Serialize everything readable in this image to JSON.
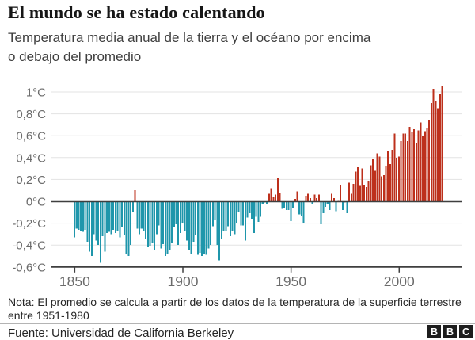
{
  "header": {
    "title": "El mundo se ha estado calentando",
    "subtitle_line1": "Temperatura media anual de la tierra y el océano por encima",
    "subtitle_line2": "o debajo del promedio"
  },
  "chart_data": {
    "type": "bar",
    "title": "El mundo se ha estado calentando",
    "xlabel": "",
    "ylabel": "",
    "ylim": [
      -0.6,
      1.1
    ],
    "baseline": 0,
    "grid": true,
    "legend": "none",
    "colors": {
      "above": "#bd301c",
      "below": "#1f96ab",
      "zero_line": "#3f3f3f",
      "axis": "#3f3f3f",
      "grid": "#e3e3e3",
      "tick_text": "#6b6b6b"
    },
    "y_ticks": [
      {
        "value": 1.0,
        "label": "1°C"
      },
      {
        "value": 0.8,
        "label": "0,8°C"
      },
      {
        "value": 0.6,
        "label": "0,6°C"
      },
      {
        "value": 0.4,
        "label": "0,4°C"
      },
      {
        "value": 0.2,
        "label": "0,2°C"
      },
      {
        "value": 0.0,
        "label": "0°C"
      },
      {
        "value": -0.2,
        "label": "-0,2°C"
      },
      {
        "value": -0.4,
        "label": "-0,4°C"
      },
      {
        "value": -0.6,
        "label": "-0,6°C"
      }
    ],
    "x_ticks": [
      {
        "value": 1850,
        "label": "1850"
      },
      {
        "value": 1900,
        "label": "1900"
      },
      {
        "value": 1950,
        "label": "1950"
      },
      {
        "value": 2000,
        "label": "2000"
      }
    ],
    "years": [
      1850,
      1851,
      1852,
      1853,
      1854,
      1855,
      1856,
      1857,
      1858,
      1859,
      1860,
      1861,
      1862,
      1863,
      1864,
      1865,
      1866,
      1867,
      1868,
      1869,
      1870,
      1871,
      1872,
      1873,
      1874,
      1875,
      1876,
      1877,
      1878,
      1879,
      1880,
      1881,
      1882,
      1883,
      1884,
      1885,
      1886,
      1887,
      1888,
      1889,
      1890,
      1891,
      1892,
      1893,
      1894,
      1895,
      1896,
      1897,
      1898,
      1899,
      1900,
      1901,
      1902,
      1903,
      1904,
      1905,
      1906,
      1907,
      1908,
      1909,
      1910,
      1911,
      1912,
      1913,
      1914,
      1915,
      1916,
      1917,
      1918,
      1919,
      1920,
      1921,
      1922,
      1923,
      1924,
      1925,
      1926,
      1927,
      1928,
      1929,
      1930,
      1931,
      1932,
      1933,
      1934,
      1935,
      1936,
      1937,
      1938,
      1939,
      1940,
      1941,
      1942,
      1943,
      1944,
      1945,
      1946,
      1947,
      1948,
      1949,
      1950,
      1951,
      1952,
      1953,
      1954,
      1955,
      1956,
      1957,
      1958,
      1959,
      1960,
      1961,
      1962,
      1963,
      1964,
      1965,
      1966,
      1967,
      1968,
      1969,
      1970,
      1971,
      1972,
      1973,
      1974,
      1975,
      1976,
      1977,
      1978,
      1979,
      1980,
      1981,
      1982,
      1983,
      1984,
      1985,
      1986,
      1987,
      1988,
      1989,
      1990,
      1991,
      1992,
      1993,
      1994,
      1995,
      1996,
      1997,
      1998,
      1999,
      2000,
      2001,
      2002,
      2003,
      2004,
      2005,
      2006,
      2007,
      2008,
      2009,
      2010,
      2011,
      2012,
      2013,
      2014,
      2015,
      2016,
      2017,
      2018,
      2019,
      2020
    ],
    "values": [
      -0.33,
      -0.25,
      -0.26,
      -0.27,
      -0.28,
      -0.26,
      -0.37,
      -0.46,
      -0.5,
      -0.3,
      -0.36,
      -0.4,
      -0.56,
      -0.32,
      -0.46,
      -0.29,
      -0.28,
      -0.3,
      -0.26,
      -0.29,
      -0.27,
      -0.33,
      -0.24,
      -0.31,
      -0.48,
      -0.5,
      -0.4,
      -0.1,
      0.1,
      -0.25,
      -0.3,
      -0.25,
      -0.27,
      -0.34,
      -0.42,
      -0.41,
      -0.38,
      -0.45,
      -0.3,
      -0.22,
      -0.43,
      -0.39,
      -0.5,
      -0.48,
      -0.45,
      -0.38,
      -0.24,
      -0.21,
      -0.4,
      -0.29,
      -0.2,
      -0.27,
      -0.36,
      -0.45,
      -0.48,
      -0.37,
      -0.31,
      -0.49,
      -0.47,
      -0.5,
      -0.48,
      -0.49,
      -0.43,
      -0.4,
      -0.23,
      -0.17,
      -0.4,
      -0.54,
      -0.34,
      -0.27,
      -0.27,
      -0.23,
      -0.32,
      -0.27,
      -0.3,
      -0.2,
      -0.1,
      -0.22,
      -0.22,
      -0.36,
      -0.15,
      -0.11,
      -0.16,
      -0.29,
      -0.14,
      -0.19,
      -0.14,
      -0.03,
      -0.01,
      -0.03,
      0.07,
      0.12,
      0.04,
      0.06,
      0.21,
      0.08,
      -0.07,
      -0.06,
      -0.08,
      -0.08,
      -0.18,
      -0.06,
      0.02,
      0.09,
      -0.12,
      -0.13,
      -0.2,
      0.05,
      0.07,
      0.03,
      -0.03,
      0.06,
      0.03,
      0.06,
      -0.21,
      -0.11,
      -0.05,
      -0.02,
      -0.08,
      0.07,
      0.03,
      -0.09,
      0.01,
      0.15,
      -0.08,
      -0.01,
      -0.11,
      0.17,
      0.07,
      0.16,
      0.27,
      0.31,
      0.14,
      0.3,
      0.15,
      0.13,
      0.19,
      0.33,
      0.39,
      0.28,
      0.44,
      0.41,
      0.23,
      0.24,
      0.32,
      0.46,
      0.34,
      0.47,
      0.62,
      0.4,
      0.41,
      0.55,
      0.62,
      0.62,
      0.55,
      0.68,
      0.63,
      0.66,
      0.53,
      0.65,
      0.72,
      0.6,
      0.64,
      0.67,
      0.74,
      0.9,
      1.03,
      0.92,
      0.85,
      0.98,
      1.05
    ]
  },
  "note": {
    "line1": "Nota: El promedio se calcula a partir de los datos de la temperatura de la superficie terrestre",
    "line2": "entre 1951-1980"
  },
  "footer": {
    "source": "Fuente: Universidad de California Berkeley",
    "logo_letters": [
      "B",
      "B",
      "C"
    ]
  }
}
